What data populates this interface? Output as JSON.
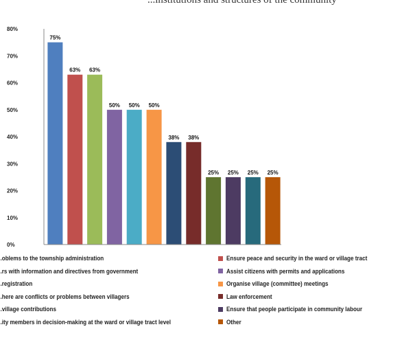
{
  "title_fragment": "...institutions and structures of the community",
  "chart_data": {
    "type": "bar",
    "ylim": [
      0,
      80
    ],
    "yticks": [
      "0%",
      "10%",
      "20%",
      "30%",
      "40%",
      "50%",
      "60%",
      "70%",
      "80%"
    ],
    "grid": false,
    "legend_position": "bottom",
    "series": [
      {
        "name": "...oblems to the township administration",
        "value": 75,
        "label": "75%",
        "color": "#4f7fbf"
      },
      {
        "name": "Ensure peace and security in the ward or village tract",
        "value": 63,
        "label": "63%",
        "color": "#c0504d"
      },
      {
        "name": "...rs with information and directives from government",
        "value": 63,
        "label": "63%",
        "color": "#9bbb59"
      },
      {
        "name": "Assist citizens with permits and applications",
        "value": 50,
        "label": "50%",
        "color": "#8064a2"
      },
      {
        "name": "...registration",
        "value": 50,
        "label": "50%",
        "color": "#4bacc6"
      },
      {
        "name": "Organise village (committee) meetings",
        "value": 50,
        "label": "50%",
        "color": "#f79646"
      },
      {
        "name": "...here are conflicts or problems between villagers",
        "value": 38,
        "label": "38%",
        "color": "#2c4d75"
      },
      {
        "name": "Law enforcement",
        "value": 38,
        "label": "38%",
        "color": "#772c2a"
      },
      {
        "name": "...village contributions",
        "value": 25,
        "label": "25%",
        "color": "#5f7530"
      },
      {
        "name": "Ensure that people participate in community labour",
        "value": 25,
        "label": "25%",
        "color": "#4d3b62"
      },
      {
        "name": "...ity members in decision-making at the ward or village tract level",
        "value": 25,
        "label": "25%",
        "color": "#276a7c"
      },
      {
        "name": "Other",
        "value": 25,
        "label": "25%",
        "color": "#b65708"
      }
    ]
  }
}
